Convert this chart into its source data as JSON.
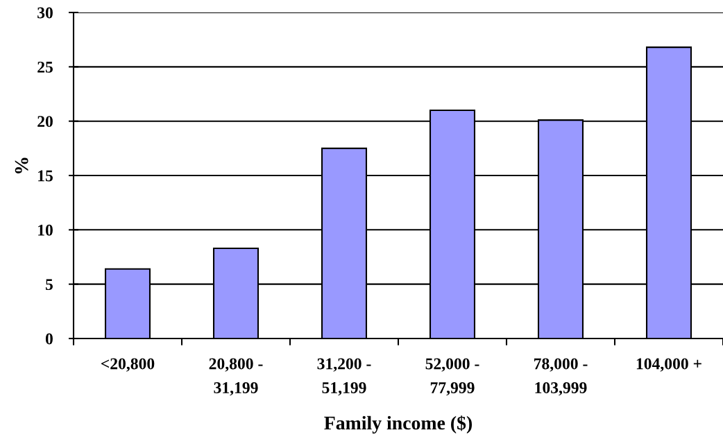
{
  "chart_data": {
    "type": "bar",
    "categories": [
      "<20,800",
      "20,800 -\n31,199",
      "31,200 -\n51,199",
      "52,000 -\n77,999",
      "78,000 -\n103,999",
      "104,000 +"
    ],
    "values": [
      6.4,
      8.3,
      17.5,
      21.0,
      20.1,
      26.8
    ],
    "color": "#9999ff",
    "xlabel": "Family income ($)",
    "ylabel": "%",
    "ylim": [
      0,
      30
    ],
    "yticks": [
      0,
      5,
      10,
      15,
      20,
      25,
      30
    ],
    "grid": "y"
  }
}
